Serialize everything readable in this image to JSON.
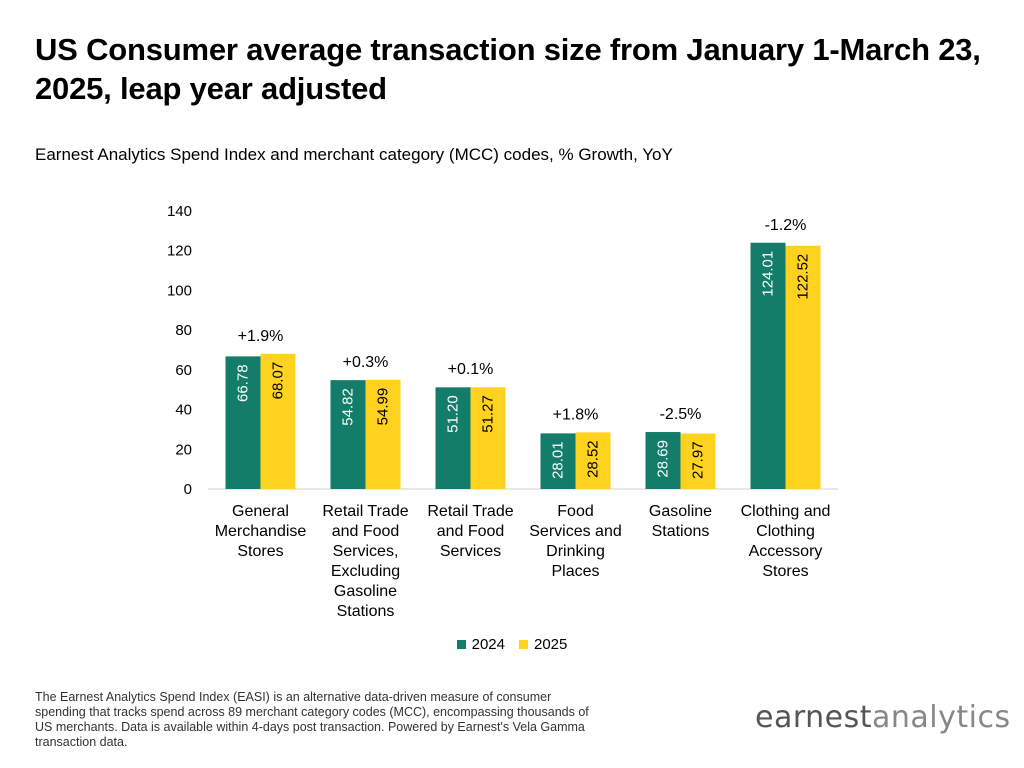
{
  "title": "US Consumer average transaction size from January 1-March 23, 2025, leap year adjusted",
  "subtitle": "Earnest Analytics Spend Index and merchant category (MCC) codes, % Growth, YoY",
  "footnote": "The Earnest Analytics Spend Index (EASI) is an alternative data-driven measure of consumer spending that tracks spend across 89 merchant category codes (MCC), encompassing thousands of US merchants. Data is available within 4-days post transaction. Powered by Earnest's Vela Gamma transaction data.",
  "logo": {
    "part1": "earnest",
    "part2": "analytics"
  },
  "colors": {
    "2024": "#137d69",
    "2025": "#ffd21f"
  },
  "chart_data": {
    "type": "bar",
    "title": "US Consumer average transaction size from January 1-March 23, 2025, leap year adjusted",
    "subtitle": "Earnest Analytics Spend Index and merchant category (MCC) codes, % Growth, YoY",
    "categories": [
      "General Merchandise Stores",
      "Retail Trade and Food Services, Excluding Gasoline Stations",
      "Retail Trade and Food Services",
      "Food Services and Drinking Places",
      "Gasoline Stations",
      "Clothing and Clothing Accessory Stores"
    ],
    "category_lines": [
      [
        "General",
        "Merchandise",
        "Stores"
      ],
      [
        "Retail Trade",
        "and Food",
        "Services,",
        "Excluding",
        "Gasoline",
        "Stations"
      ],
      [
        "Retail Trade",
        "and Food",
        "Services"
      ],
      [
        "Food",
        "Services and",
        "Drinking",
        "Places"
      ],
      [
        "Gasoline",
        "Stations"
      ],
      [
        "Clothing and",
        "Clothing",
        "Accessory",
        "Stores"
      ]
    ],
    "series": [
      {
        "name": "2024",
        "values": [
          66.78,
          54.82,
          51.2,
          28.01,
          28.69,
          124.01
        ],
        "labels": [
          "66.78",
          "54.82",
          "51.20",
          "28.01",
          "28.69",
          "124.01"
        ]
      },
      {
        "name": "2025",
        "values": [
          68.07,
          54.99,
          51.27,
          28.52,
          27.97,
          122.52
        ],
        "labels": [
          "68.07",
          "54.99",
          "51.27",
          "28.52",
          "27.97",
          "122.52"
        ]
      }
    ],
    "growth_labels": [
      "+1.9%",
      "+0.3%",
      "+0.1%",
      "+1.8%",
      "-2.5%",
      "-1.2%"
    ],
    "yticks": [
      "0",
      "20",
      "40",
      "60",
      "80",
      "100",
      "120",
      "140"
    ],
    "ylim": [
      0,
      140
    ],
    "grid": false,
    "legend_position": "bottom"
  }
}
